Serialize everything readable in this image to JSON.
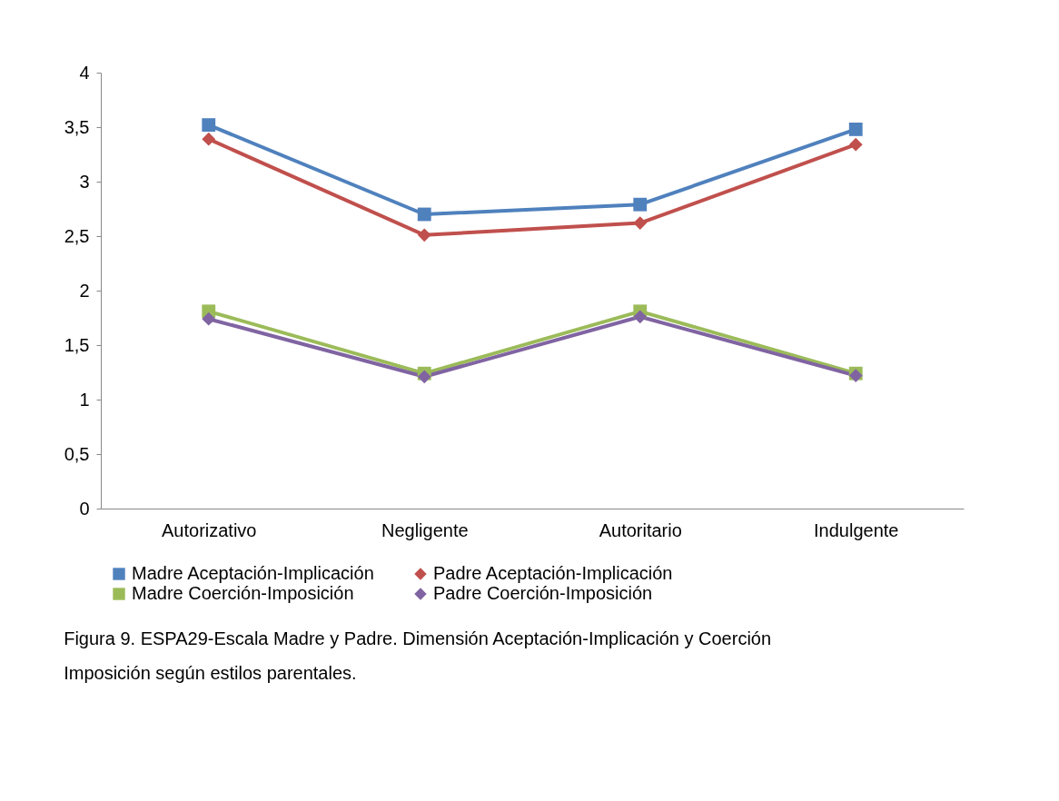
{
  "chart_data": {
    "type": "line",
    "categories": [
      "Autorizativo",
      "Negligente",
      "Autoritario",
      "Indulgente"
    ],
    "series": [
      {
        "name": "Madre Aceptación-Implicación",
        "color": "#4f81bd",
        "marker": "square",
        "values": [
          3.52,
          2.7,
          2.79,
          3.48
        ]
      },
      {
        "name": "Padre Aceptación-Implicación",
        "color": "#c0504d",
        "marker": "diamond",
        "values": [
          3.39,
          2.51,
          2.62,
          3.34
        ]
      },
      {
        "name": "Madre Coerción-Imposición",
        "color": "#9bbb59",
        "marker": "square",
        "values": [
          1.81,
          1.24,
          1.81,
          1.24
        ]
      },
      {
        "name": "Padre Coerción-Imposición",
        "color": "#8064a2",
        "marker": "diamond",
        "values": [
          1.74,
          1.21,
          1.76,
          1.22
        ]
      }
    ],
    "ylim": [
      0,
      4
    ],
    "yticks": [
      0,
      {
        "value": 0.5,
        "label": "0,5"
      },
      1,
      {
        "value": 1.5,
        "label": "1,5"
      },
      2,
      {
        "value": 2.5,
        "label": "2,5"
      },
      3,
      {
        "value": 3.5,
        "label": "3,5"
      },
      4
    ],
    "grid": false,
    "legend": "bottom",
    "line_style": "solid",
    "annotations": [
      "Figura 9. ESPA29-Escala Madre y Padre. Dimensión Aceptación-Implicación y Coerción Imposición según estilos parentales."
    ]
  }
}
